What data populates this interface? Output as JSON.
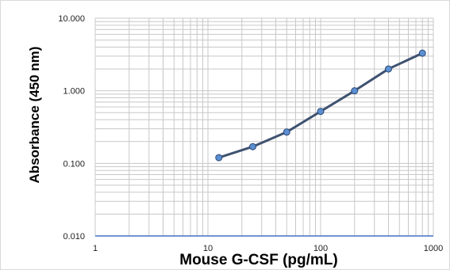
{
  "chart_data": {
    "type": "line",
    "title": "",
    "xlabel": "Mouse G-CSF (pg/mL)",
    "ylabel": "Absorbance (450 nm)",
    "x_scale": "log",
    "y_scale": "log",
    "xlim": [
      1,
      1000
    ],
    "ylim": [
      0.01,
      10
    ],
    "x_ticks": [
      {
        "value": 1,
        "label": "1"
      },
      {
        "value": 10,
        "label": "10"
      },
      {
        "value": 100,
        "label": "100"
      },
      {
        "value": 1000,
        "label": "1000"
      }
    ],
    "y_ticks": [
      {
        "value": 0.01,
        "label": "0.010"
      },
      {
        "value": 0.1,
        "label": "0.100"
      },
      {
        "value": 1,
        "label": "1.000"
      },
      {
        "value": 10,
        "label": "10.000"
      }
    ],
    "grid": true,
    "legend": "none",
    "series": [
      {
        "x": [
          12.5,
          25,
          50,
          100,
          200,
          400,
          800
        ],
        "y": [
          0.12,
          0.17,
          0.27,
          0.52,
          1.0,
          2.0,
          3.3
        ],
        "line_color": "#3f5270",
        "marker_color": "#5b8fd1",
        "marker_edge": "#2f4a78"
      }
    ],
    "grid_color": "#c8c8c8",
    "axis_color": "#4472c4"
  }
}
